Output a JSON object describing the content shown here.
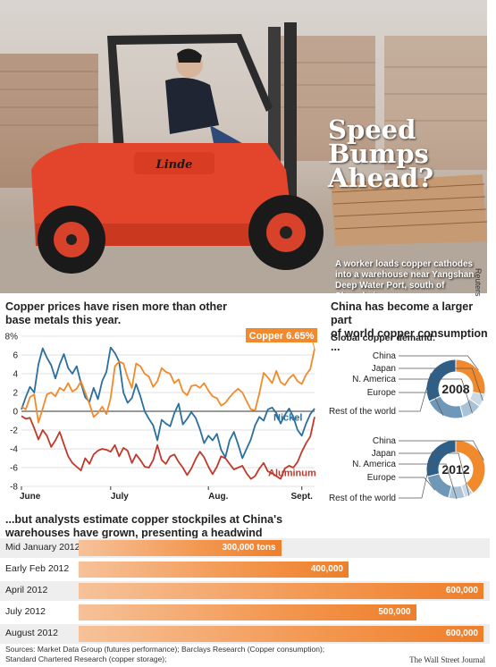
{
  "photo": {
    "headline_lines": [
      "Speed",
      "Bumps",
      "Ahead?"
    ],
    "brand": "Linde",
    "caption": "A worker loads copper cathodes into a warehouse near Yangshan Deep Water Port, south of Shanghai",
    "credit": "Reuters"
  },
  "line_section": {
    "title_lines": [
      "Copper prices have risen more than other",
      "base metals this year."
    ]
  },
  "pie_section": {
    "title_lines": [
      "China has become a larger part",
      "of world copper consumption ..."
    ],
    "subtitle": "Global copper demand:",
    "labels": [
      "China",
      "Japan",
      "N. America",
      "Europe",
      "Rest of the world"
    ]
  },
  "bar_section": {
    "title_lines": [
      "...but analysts estimate copper stockpiles at China's",
      "warehouses have grown, presenting a headwind"
    ]
  },
  "footer": {
    "sources_lines": [
      "Sources: Market Data Group (futures performance); Barclays Research (Copper consumption);",
      "Standard Chartered Research (copper storage);"
    ],
    "publisher": "The Wall Street Journal"
  },
  "colors": {
    "copper": "#f08a2c",
    "nickel": "#2a6f9e",
    "aluminum": "#c0392b",
    "china": "#f08a2c",
    "japan": "#c9d9e6",
    "namerica": "#a9c2d6",
    "europe": "#6f97b8",
    "rest": "#2e5f88"
  },
  "chart_data": [
    {
      "type": "line",
      "ylim": [
        -8,
        8
      ],
      "yticks": [
        -8,
        -6,
        -4,
        -2,
        0,
        2,
        4,
        6,
        8
      ],
      "ytick_labels": [
        "-8",
        "-6",
        "-4",
        "-2",
        "0",
        "2",
        "4",
        "6",
        "8%"
      ],
      "xtick_labels": [
        "June",
        "July",
        "Aug.",
        "Sept."
      ],
      "x": [
        0,
        1,
        2,
        3,
        4,
        5,
        6,
        7,
        8,
        9,
        10,
        11,
        12,
        13,
        14,
        15,
        16,
        17,
        18,
        19,
        20,
        21,
        22,
        23,
        24,
        25,
        26,
        27,
        28,
        29,
        30,
        31,
        32,
        33,
        34,
        35,
        36,
        37,
        38,
        39,
        40,
        41,
        42,
        43,
        44,
        45,
        46,
        47,
        48,
        49,
        50,
        51,
        52,
        53,
        54,
        55,
        56,
        57,
        58,
        59,
        60,
        61,
        62,
        63,
        64,
        65,
        66,
        67,
        68,
        69
      ],
      "xtick_positions": [
        0,
        21,
        44,
        66
      ],
      "series": [
        {
          "name": "Copper 6.65%",
          "end_label": "Copper 6.65%",
          "values": [
            0.5,
            0.2,
            1.5,
            1.8,
            -1.2,
            0.3,
            1.8,
            2.0,
            1.6,
            2.5,
            2.2,
            3.0,
            2.1,
            2.4,
            3.2,
            2.0,
            0.8,
            -0.6,
            -0.2,
            0.5,
            -0.3,
            1.4,
            4.8,
            5.3,
            5.1,
            3.6,
            2.5,
            5.1,
            4.8,
            4.0,
            3.7,
            2.6,
            3.2,
            4.6,
            4.2,
            4.0,
            3.0,
            3.4,
            2.1,
            1.7,
            2.7,
            2.8,
            2.5,
            3.0,
            2.2,
            1.6,
            1.4,
            0.6,
            0.9,
            1.5,
            2.0,
            2.4,
            2.0,
            1.1,
            0.2,
            0.1,
            1.9,
            4.1,
            3.6,
            3.0,
            4.3,
            3.1,
            2.8,
            3.5,
            3.9,
            3.2,
            2.9,
            3.9,
            4.5,
            6.65
          ]
        },
        {
          "name": "Nickel",
          "values": [
            0.2,
            1.5,
            2.6,
            2.0,
            5.0,
            6.7,
            5.7,
            4.9,
            3.5,
            5.0,
            6.1,
            4.6,
            4.0,
            4.8,
            3.0,
            1.5,
            1.0,
            2.5,
            1.3,
            3.2,
            4.2,
            6.8,
            6.2,
            5.3,
            2.0,
            0.9,
            1.4,
            2.9,
            1.6,
            0.0,
            -0.8,
            -1.5,
            -3.1,
            -0.9,
            -1.3,
            -1.6,
            -0.2,
            0.8,
            -1.4,
            -0.8,
            -0.1,
            -0.7,
            -1.9,
            -3.4,
            -2.6,
            -3.1,
            -2.4,
            -4.1,
            -4.9,
            -3.1,
            -2.2,
            -3.5,
            -5.0,
            -4.0,
            -3.0,
            -1.5,
            -0.6,
            -1.0,
            0.2,
            0.4,
            -0.2,
            -1.3,
            -0.4,
            0.3,
            -0.6,
            -2.0,
            -2.6,
            -1.3,
            -0.3,
            0.3
          ]
        },
        {
          "name": "Aluminum",
          "values": [
            -0.5,
            -0.8,
            -0.7,
            -1.8,
            -3.0,
            -2.0,
            -2.6,
            -3.8,
            -3.1,
            -2.2,
            -3.5,
            -4.8,
            -5.5,
            -5.9,
            -6.3,
            -5.0,
            -5.6,
            -4.6,
            -4.2,
            -4.0,
            -4.1,
            -4.3,
            -3.6,
            -4.8,
            -3.9,
            -4.2,
            -5.5,
            -4.6,
            -5.2,
            -5.9,
            -6.0,
            -5.2,
            -3.6,
            -5.2,
            -5.6,
            -4.8,
            -4.6,
            -5.4,
            -6.0,
            -6.8,
            -6.1,
            -5.1,
            -4.3,
            -4.9,
            -5.9,
            -6.7,
            -5.9,
            -4.8,
            -5.0,
            -5.6,
            -6.2,
            -6.0,
            -5.8,
            -6.6,
            -7.2,
            -6.9,
            -6.1,
            -5.5,
            -6.4,
            -6.6,
            -6.9,
            -7.2,
            -6.1,
            -5.8,
            -6.0,
            -5.4,
            -4.3,
            -3.4,
            -2.7,
            -0.6
          ]
        }
      ]
    },
    {
      "type": "pie",
      "title": "2008",
      "categories": [
        "China",
        "Japan",
        "N. America",
        "Europe",
        "Rest of the world"
      ],
      "values": [
        28,
        7,
        11,
        22,
        32
      ]
    },
    {
      "type": "pie",
      "title": "2012",
      "categories": [
        "China",
        "Japan",
        "N. America",
        "Europe",
        "Rest of the world"
      ],
      "values": [
        40,
        5,
        9,
        17,
        29
      ]
    },
    {
      "type": "bar",
      "orientation": "horizontal",
      "categories": [
        "Mid January 2012",
        "Early Feb 2012",
        "April 2012",
        "July 2012",
        "August 2012"
      ],
      "values": [
        300000,
        400000,
        600000,
        500000,
        600000
      ],
      "value_labels": [
        "300,000 tons",
        "400,000",
        "600,000",
        "500,000",
        "600,000"
      ],
      "xlim": [
        0,
        600000
      ]
    }
  ]
}
